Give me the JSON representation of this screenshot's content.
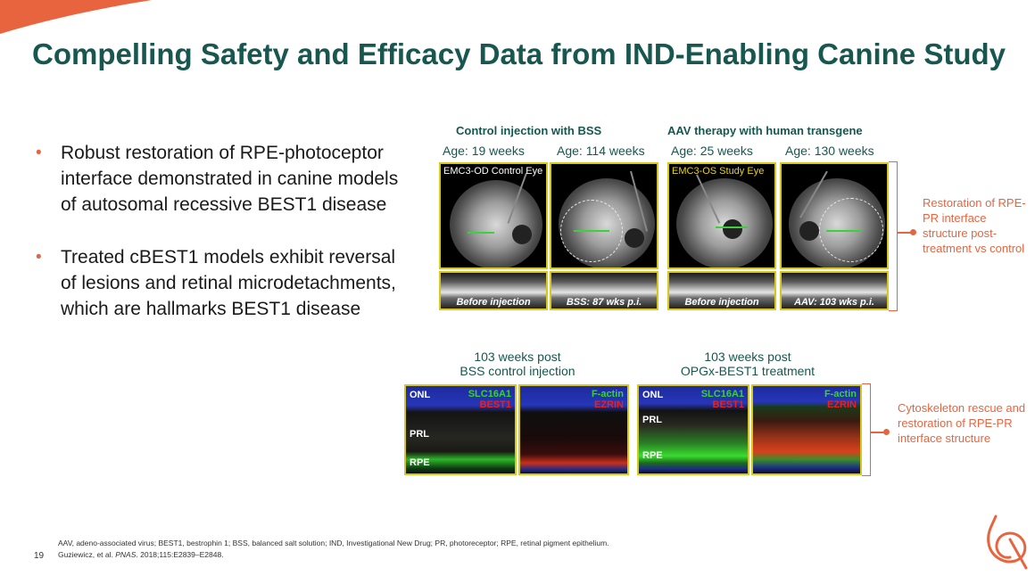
{
  "slide": {
    "title": "Compelling Safety and Efficacy Data from IND-Enabling Canine Study",
    "page_number": "19"
  },
  "bullets": [
    "Robust restoration of RPE-photoceptor interface demonstrated in canine models of autosomal recessive BEST1 disease",
    "Treated cBEST1 models exhibit reversal of lesions and retinal microdetachments, which are hallmarks BEST1 disease"
  ],
  "fundus_panel": {
    "control_heading": "Control injection with BSS",
    "therapy_heading": "AAV therapy with human transgene",
    "ages": [
      "Age: 19 weeks",
      "Age: 114 weeks",
      "Age: 25 weeks",
      "Age: 130 weeks"
    ],
    "eye_tags": [
      "EMC3-OD Control Eye",
      "EMC3-OS Study Eye"
    ],
    "oct_labels": [
      "Before injection",
      "BSS: 87 wks p.i.",
      "Before injection",
      "AAV: 103 wks p.i."
    ],
    "annotation": "Restoration of RPE-PR interface structure post-treatment vs control"
  },
  "histology_panel": {
    "left_caption_line1": "103 weeks post",
    "left_caption_line2": "BSS control injection",
    "right_caption_line1": "103 weeks post",
    "right_caption_line2": "OPGx-BEST1 treatment",
    "layer_labels": [
      "ONL",
      "PRL",
      "RPE"
    ],
    "stain_slc": "SLC16A1",
    "stain_best": "BEST1",
    "stain_factin": "F-actin",
    "stain_ezrin": "EZRIN",
    "annotation": "Cytoskeleton rescue and restoration of RPE-PR interface structure"
  },
  "colors": {
    "title": "#17574f",
    "accent": "#e8643f",
    "image_border": "#d8c81b"
  },
  "footnotes": {
    "abbreviations": "AAV, adeno-associated virus; BEST1, bestrophin 1; BSS, balanced salt solution; IND, Investigational New Drug; PR, photoreceptor; RPE, retinal pigment epithelium.",
    "citation_authors": "Guziewicz, et al. ",
    "citation_journal": "PNAS",
    "citation_rest": ". 2018;115:E2839–E2848."
  }
}
